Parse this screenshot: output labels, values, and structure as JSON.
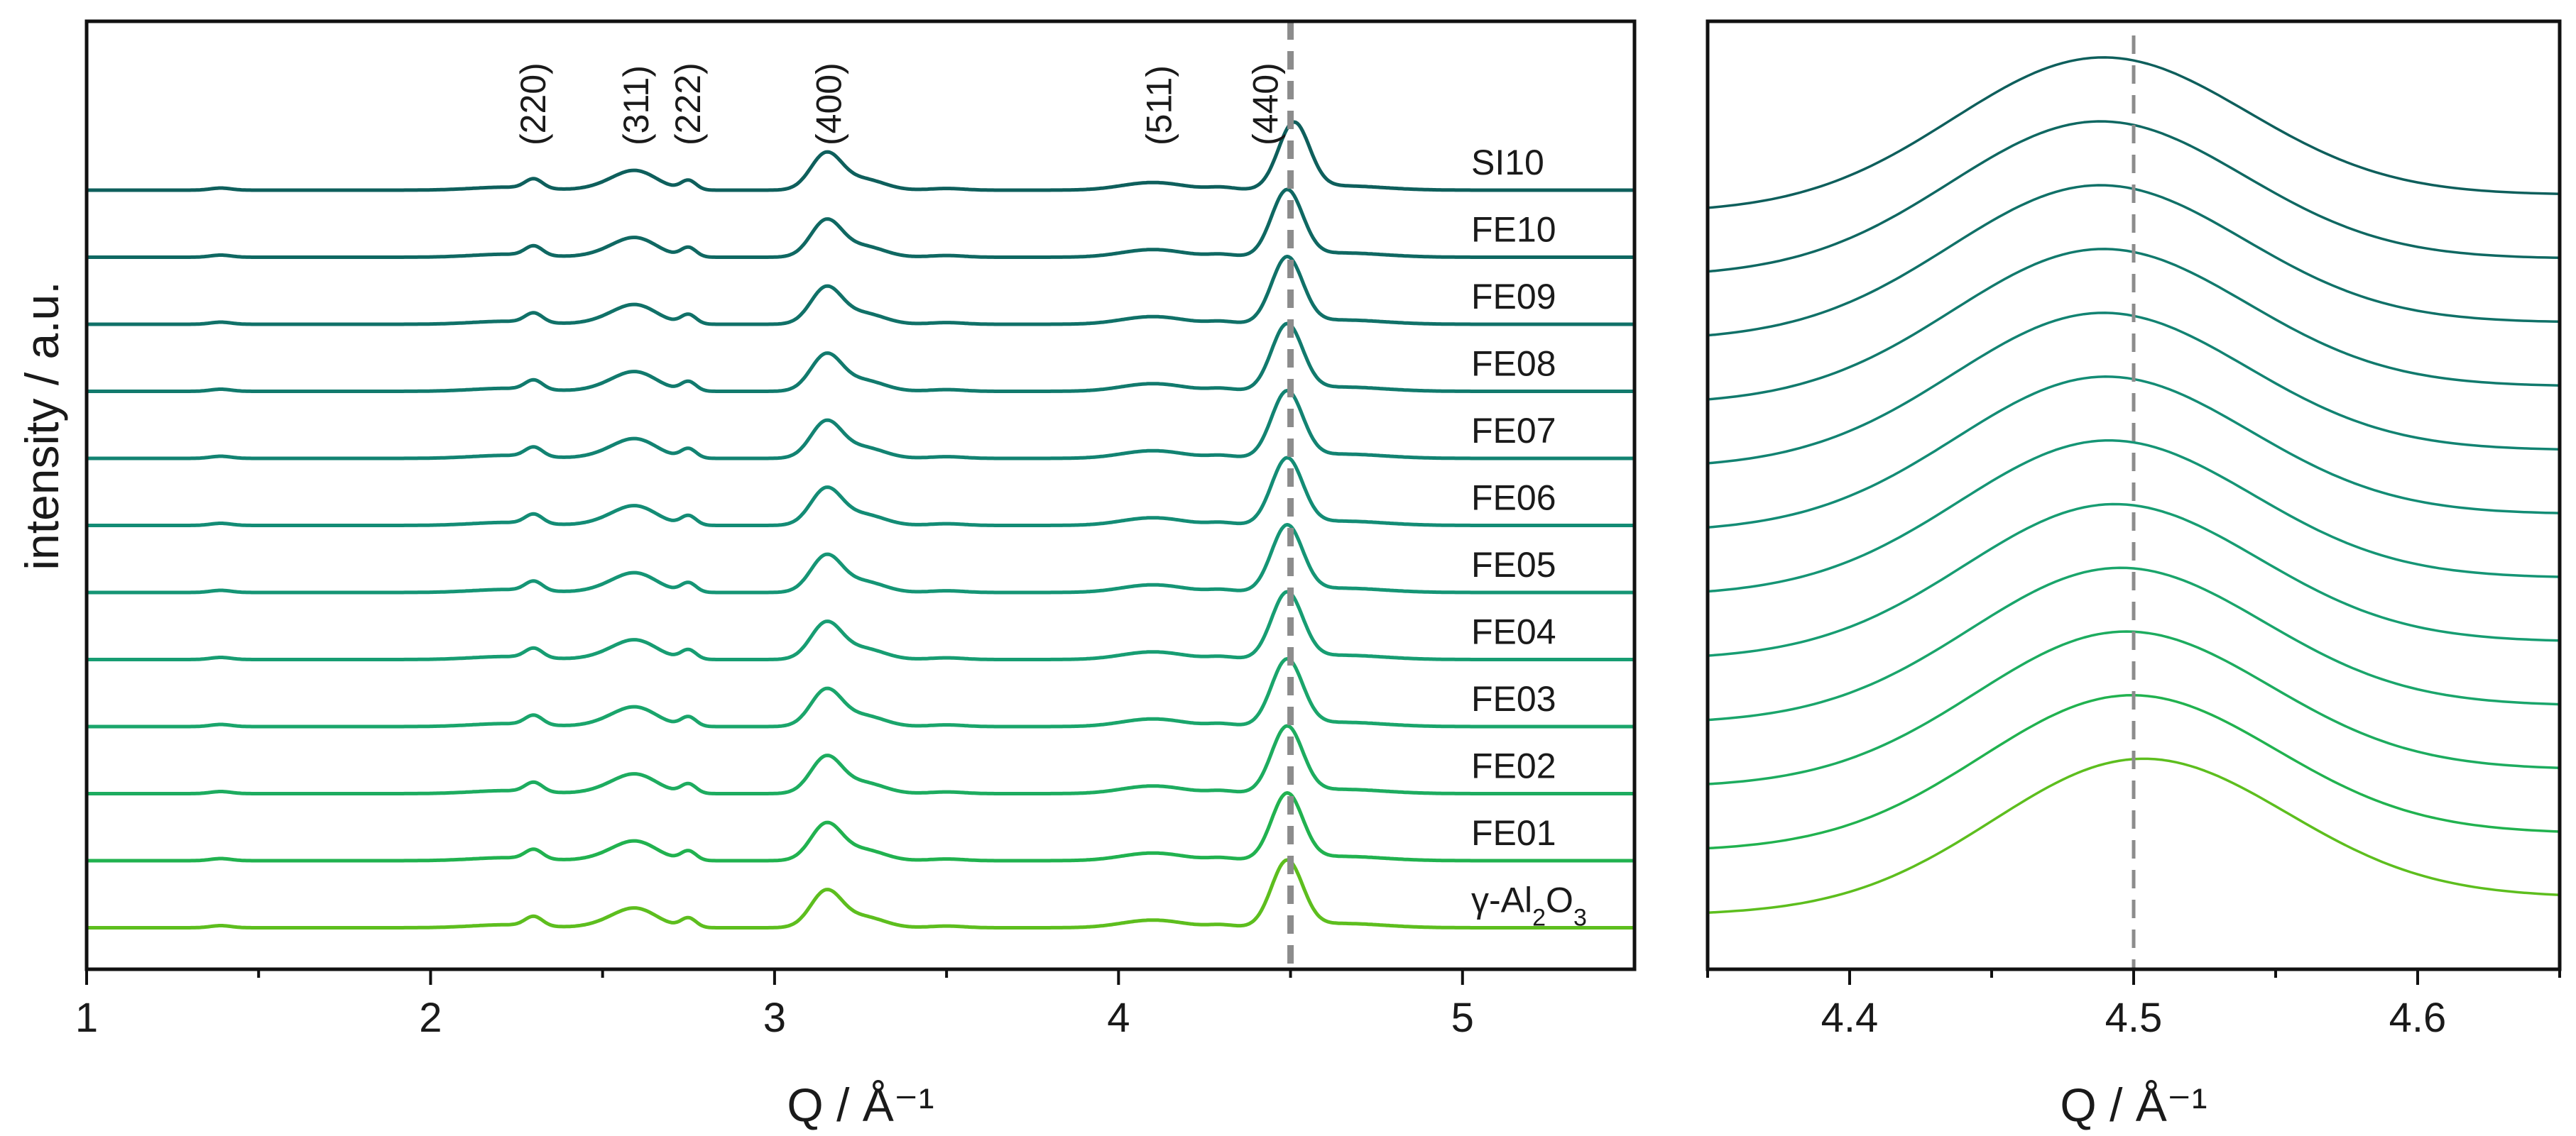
{
  "chart_data": [
    {
      "type": "line",
      "panel": "left",
      "title": "",
      "xlabel": "Q / Å⁻¹",
      "ylabel": "intensity / a.u.",
      "xlim": [
        1,
        5.5
      ],
      "xticks": [
        1,
        2,
        3,
        4,
        5
      ],
      "xtick_labels": [
        "1",
        "2",
        "3",
        "4",
        "5"
      ],
      "yticks_shown": false,
      "reference_line_x": 4.5,
      "peak_annotations": [
        {
          "label": "(220)",
          "x": 2.3
        },
        {
          "label": "(311)",
          "x": 2.6
        },
        {
          "label": "(222)",
          "x": 2.75
        },
        {
          "label": "(400)",
          "x": 3.16
        },
        {
          "label": "(511)",
          "x": 4.12
        },
        {
          "label": "(440)",
          "x": 4.43
        }
      ],
      "series": [
        {
          "name": "SI10",
          "label_main": "SI10",
          "label_sub": "",
          "label_tail": "",
          "color": "#0e5f5c",
          "peak_shift": 0.02
        },
        {
          "name": "FE10",
          "label_main": "FE10",
          "label_sub": "",
          "label_tail": "",
          "color": "#0f6862",
          "peak_shift": 0.0
        },
        {
          "name": "FE09",
          "label_main": "FE09",
          "label_sub": "",
          "label_tail": "",
          "color": "#107168",
          "peak_shift": 0.0
        },
        {
          "name": "FE08",
          "label_main": "FE08",
          "label_sub": "",
          "label_tail": "",
          "color": "#117a6d",
          "peak_shift": 0.0
        },
        {
          "name": "FE07",
          "label_main": "FE07",
          "label_sub": "",
          "label_tail": "",
          "color": "#128372",
          "peak_shift": 0.0
        },
        {
          "name": "FE06",
          "label_main": "FE06",
          "label_sub": "",
          "label_tail": "",
          "color": "#138c75",
          "peak_shift": 0.0
        },
        {
          "name": "FE05",
          "label_main": "FE05",
          "label_sub": "",
          "label_tail": "",
          "color": "#159575",
          "peak_shift": 0.0
        },
        {
          "name": "FE04",
          "label_main": "FE04",
          "label_sub": "",
          "label_tail": "",
          "color": "#179d72",
          "peak_shift": 0.0
        },
        {
          "name": "FE03",
          "label_main": "FE03",
          "label_sub": "",
          "label_tail": "",
          "color": "#1aa56b",
          "peak_shift": 0.0
        },
        {
          "name": "FE02",
          "label_main": "FE02",
          "label_sub": "",
          "label_tail": "",
          "color": "#1dac5f",
          "peak_shift": 0.0
        },
        {
          "name": "FE01",
          "label_main": "FE01",
          "label_sub": "",
          "label_tail": "",
          "color": "#21b24f",
          "peak_shift": 0.0
        },
        {
          "name": "γ-Al2O3",
          "label_main": "γ-Al",
          "label_sub": "2",
          "label_tail": "O",
          "label_sub2": "3",
          "color": "#5dbe1e",
          "peak_shift": 0.0
        }
      ]
    },
    {
      "type": "line",
      "panel": "right",
      "title": "",
      "xlabel": "Q / Å⁻¹",
      "ylabel": "",
      "xlim": [
        4.35,
        4.65
      ],
      "xticks": [
        4.4,
        4.5,
        4.6
      ],
      "xtick_labels": [
        "4.4",
        "4.5",
        "4.6"
      ],
      "minor_xticks": [
        4.35,
        4.45,
        4.55,
        4.65
      ],
      "reference_line_x": 4.5,
      "series_peak_centers": [
        4.488,
        4.487,
        4.487,
        4.488,
        4.488,
        4.489,
        4.49,
        4.492,
        4.494,
        4.496,
        4.498,
        4.502
      ]
    }
  ]
}
